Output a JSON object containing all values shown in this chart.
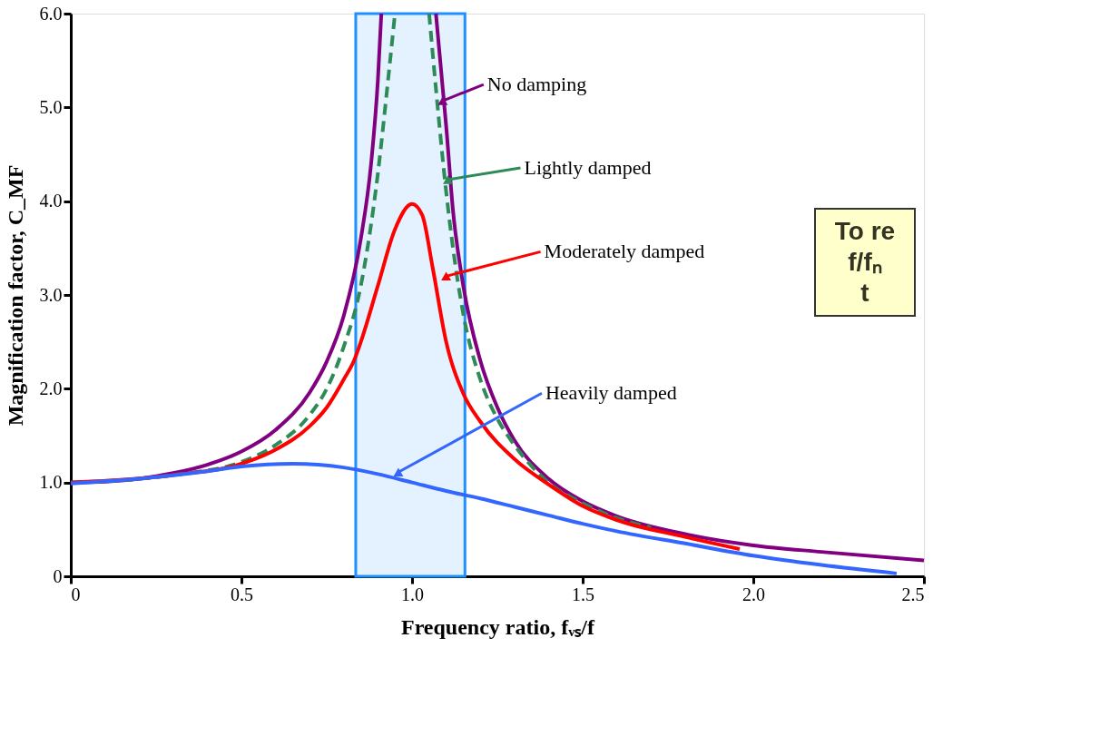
{
  "chart_data": {
    "type": "line",
    "xlabel": "Frequency ratio, fᵥₛ/f",
    "ylabel": "Magnification factor, C_MF",
    "xlim": [
      0,
      2.5
    ],
    "ylim": [
      0,
      6
    ],
    "xticks": [
      0,
      0.5,
      {
        "value": 1,
        "label": "1.0"
      },
      1.5,
      {
        "value": 2,
        "label": "2.0"
      },
      2.5
    ],
    "yticks": [
      0,
      {
        "value": 1,
        "label": "1.0"
      },
      {
        "value": 2,
        "label": "2.0"
      },
      {
        "value": 3,
        "label": "3.0"
      },
      {
        "value": 4,
        "label": "4.0"
      },
      {
        "value": 5,
        "label": "5.0"
      },
      {
        "value": 6,
        "label": "6.0"
      }
    ],
    "grid": false,
    "legend": false,
    "marker": "none",
    "line_style": "solid",
    "series": [
      {
        "color": "#800080",
        "x": [
          0,
          0.1,
          0.2,
          0.3,
          0.4,
          0.5,
          0.6,
          0.7,
          0.75,
          0.8,
          0.85,
          0.88,
          0.9,
          0.91,
          1.0,
          1.07,
          1.09,
          1.1,
          1.12,
          1.15,
          1.2,
          1.25,
          1.3,
          1.4,
          1.5,
          1.6,
          1.8,
          2.0,
          2.2,
          2.5
        ],
        "values": [
          1.0,
          1.01,
          1.04,
          1.1,
          1.19,
          1.33,
          1.56,
          1.96,
          2.29,
          2.78,
          3.6,
          4.4,
          5.3,
          6.0,
          null,
          6.0,
          5.2,
          4.8,
          3.9,
          3.1,
          2.3,
          1.8,
          1.45,
          1.04,
          0.8,
          0.64,
          0.45,
          0.33,
          0.26,
          0.17
        ]
      },
      {
        "color": "#2e8b57",
        "line_style": "dashed",
        "x": [
          0,
          0.3,
          0.5,
          0.6,
          0.7,
          0.75,
          0.8,
          0.85,
          0.9,
          0.93,
          0.95,
          1.0,
          1.05,
          1.07,
          1.1,
          1.12,
          1.15,
          1.2,
          1.25,
          1.3,
          1.4,
          1.5,
          1.6,
          1.7
        ],
        "values": [
          1.0,
          1.08,
          1.22,
          1.4,
          1.72,
          2.0,
          2.45,
          3.1,
          4.3,
          5.3,
          6.0,
          null,
          6.0,
          5.2,
          4.1,
          3.5,
          2.8,
          2.1,
          1.68,
          1.4,
          1.0,
          0.78,
          0.62,
          0.52
        ]
      },
      {
        "color": "#ff0000",
        "x": [
          0,
          0.3,
          0.5,
          0.6,
          0.7,
          0.75,
          0.8,
          0.83,
          0.85,
          0.9,
          0.95,
          1.0,
          1.03,
          1.06,
          1.1,
          1.15,
          1.2,
          1.3,
          1.4,
          1.5,
          1.6,
          1.8,
          1.96
        ],
        "values": [
          1.0,
          1.08,
          1.2,
          1.35,
          1.6,
          1.8,
          2.1,
          2.3,
          2.5,
          3.1,
          3.7,
          3.97,
          3.85,
          3.3,
          2.5,
          1.95,
          1.65,
          1.25,
          0.98,
          0.75,
          0.6,
          0.42,
          0.29
        ]
      },
      {
        "color": "#3366ff",
        "x": [
          0,
          0.2,
          0.4,
          0.5,
          0.65,
          0.8,
          0.9,
          1.0,
          1.1,
          1.2,
          1.3,
          1.4,
          1.5,
          1.6,
          1.8,
          2.0,
          2.2,
          2.42
        ],
        "values": [
          0.99,
          1.04,
          1.12,
          1.17,
          1.2,
          1.16,
          1.09,
          1.0,
          0.91,
          0.83,
          0.74,
          0.65,
          0.56,
          0.48,
          0.35,
          0.22,
          0.12,
          0.03
        ]
      }
    ],
    "bands": [
      {
        "axis": "x",
        "from": 0.835,
        "to": 1.155,
        "color": "#1e90ff"
      }
    ],
    "annotations": [
      {
        "text": "No damping",
        "x": 1.09,
        "y": 5.07
      },
      {
        "text": "Lightly damped",
        "x": 1.105,
        "y": 4.23
      },
      {
        "text": "Moderately damped",
        "x": 1.1,
        "y": 3.2
      },
      {
        "text": "Heavily damped",
        "x": 0.96,
        "y": 1.11
      },
      "To re",
      "f/fₙ",
      "t"
    ]
  }
}
